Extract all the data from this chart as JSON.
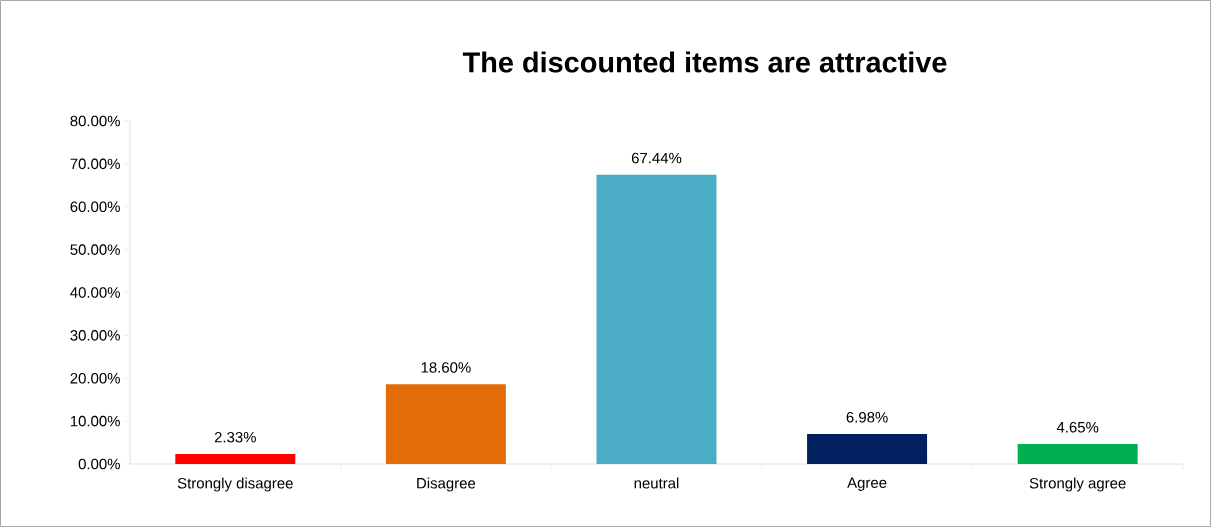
{
  "chart_data": {
    "type": "bar",
    "title": "The discounted items are attractive",
    "categories": [
      "Strongly disagree",
      "Disagree",
      "neutral",
      "Agree",
      "Strongly agree"
    ],
    "values": [
      2.33,
      18.6,
      67.44,
      6.98,
      4.65
    ],
    "colors": [
      "#ff0000",
      "#e36c09",
      "#4bacc6",
      "#002060",
      "#00b050"
    ],
    "value_labels": [
      "2.33%",
      "18.60%",
      "67.44%",
      "6.98%",
      "4.65%"
    ],
    "ylim": [
      0,
      80
    ],
    "yticks": [
      {
        "value": 0,
        "label": "0.00%"
      },
      {
        "value": 10,
        "label": "10.00%"
      },
      {
        "value": 20,
        "label": "20.00%"
      },
      {
        "value": 30,
        "label": "30.00%"
      },
      {
        "value": 40,
        "label": "40.00%"
      },
      {
        "value": 50,
        "label": "50.00%"
      },
      {
        "value": 60,
        "label": "60.00%"
      },
      {
        "value": 70,
        "label": "70.00%"
      },
      {
        "value": 80,
        "label": "80.00%"
      }
    ],
    "grid": false
  }
}
